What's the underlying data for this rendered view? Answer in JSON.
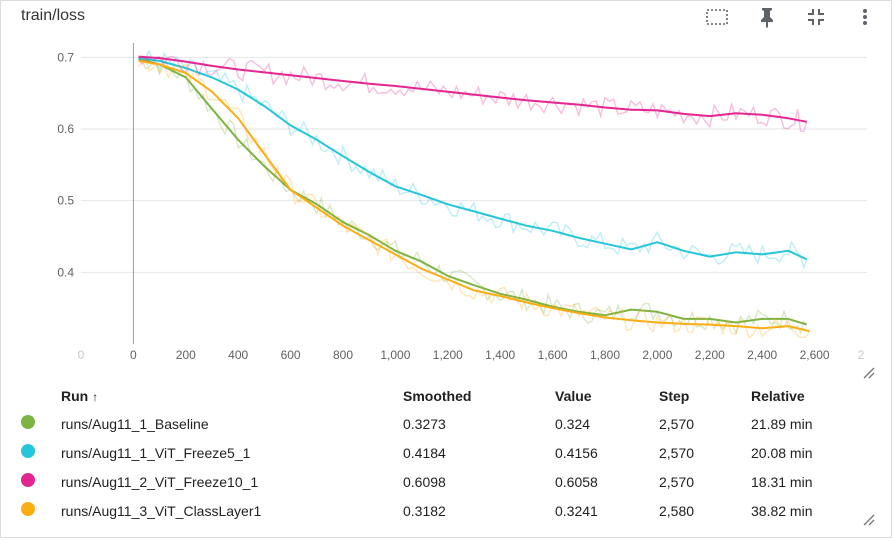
{
  "title": "train/loss",
  "chart_data": {
    "type": "line",
    "title": "train/loss",
    "xlim": [
      -200,
      2800
    ],
    "ylim": [
      0.3,
      0.72
    ],
    "x_ticks": [
      0,
      200,
      400,
      600,
      800,
      1000,
      1200,
      1400,
      1600,
      1800,
      2000,
      2200,
      2400,
      2600
    ],
    "x_tick_labels": [
      "0",
      "200",
      "400",
      "600",
      "800",
      "1,000",
      "1,200",
      "1,400",
      "1,600",
      "1,800",
      "2,000",
      "2,200",
      "2,400",
      "2,600"
    ],
    "y_ticks": [
      0.4,
      0.5,
      0.6,
      0.7
    ],
    "y_tick_labels": [
      "0.4",
      "0.5",
      "0.6",
      "0.7"
    ],
    "grid": true,
    "legend": "table-below",
    "series": [
      {
        "name": "runs/Aug11_1_Baseline",
        "color": "#7cb342",
        "x": [
          20,
          100,
          200,
          300,
          400,
          500,
          600,
          700,
          800,
          900,
          1000,
          1100,
          1200,
          1300,
          1400,
          1500,
          1600,
          1700,
          1800,
          1900,
          2000,
          2100,
          2200,
          2300,
          2400,
          2500,
          2570
        ],
        "y": [
          0.698,
          0.69,
          0.672,
          0.628,
          0.585,
          0.548,
          0.515,
          0.495,
          0.47,
          0.452,
          0.43,
          0.415,
          0.395,
          0.382,
          0.37,
          0.362,
          0.352,
          0.345,
          0.34,
          0.348,
          0.345,
          0.335,
          0.335,
          0.33,
          0.335,
          0.335,
          0.327
        ]
      },
      {
        "name": "runs/Aug11_1_ViT_Freeze5_1",
        "color": "#26c6da",
        "x": [
          20,
          100,
          200,
          300,
          400,
          500,
          600,
          700,
          800,
          900,
          1000,
          1100,
          1200,
          1300,
          1400,
          1500,
          1600,
          1700,
          1800,
          1900,
          2000,
          2100,
          2200,
          2300,
          2400,
          2500,
          2570
        ],
        "y": [
          0.699,
          0.695,
          0.685,
          0.672,
          0.655,
          0.632,
          0.605,
          0.585,
          0.562,
          0.54,
          0.52,
          0.508,
          0.495,
          0.485,
          0.475,
          0.465,
          0.458,
          0.448,
          0.44,
          0.432,
          0.442,
          0.43,
          0.422,
          0.428,
          0.425,
          0.43,
          0.418
        ]
      },
      {
        "name": "runs/Aug11_2_ViT_Freeze10_1",
        "color": "#e52592",
        "x": [
          20,
          100,
          200,
          300,
          400,
          500,
          600,
          700,
          800,
          900,
          1000,
          1100,
          1200,
          1300,
          1400,
          1500,
          1600,
          1700,
          1800,
          1900,
          2000,
          2100,
          2200,
          2300,
          2400,
          2500,
          2570
        ],
        "y": [
          0.701,
          0.699,
          0.694,
          0.688,
          0.683,
          0.679,
          0.675,
          0.671,
          0.667,
          0.663,
          0.66,
          0.656,
          0.652,
          0.648,
          0.644,
          0.64,
          0.637,
          0.634,
          0.63,
          0.627,
          0.626,
          0.621,
          0.618,
          0.622,
          0.62,
          0.615,
          0.61
        ]
      },
      {
        "name": "runs/Aug11_3_ViT_ClassLayer1",
        "color": "#fbad14",
        "x": [
          20,
          100,
          200,
          300,
          400,
          500,
          600,
          700,
          800,
          900,
          1000,
          1100,
          1200,
          1300,
          1400,
          1500,
          1600,
          1700,
          1800,
          1900,
          2000,
          2100,
          2200,
          2300,
          2400,
          2500,
          2580
        ],
        "y": [
          0.695,
          0.69,
          0.678,
          0.652,
          0.615,
          0.565,
          0.515,
          0.49,
          0.465,
          0.445,
          0.425,
          0.405,
          0.39,
          0.375,
          0.367,
          0.358,
          0.35,
          0.343,
          0.337,
          0.333,
          0.33,
          0.328,
          0.327,
          0.325,
          0.322,
          0.325,
          0.318
        ]
      }
    ]
  },
  "table": {
    "headers": {
      "run": "Run",
      "sort_arrow": "↑",
      "smoothed": "Smoothed",
      "value": "Value",
      "step": "Step",
      "relative": "Relative"
    },
    "rows": [
      {
        "run": "runs/Aug11_1_Baseline",
        "smoothed": "0.3273",
        "value": "0.324",
        "step": "2,570",
        "relative": "21.89 min"
      },
      {
        "run": "runs/Aug11_1_ViT_Freeze5_1",
        "smoothed": "0.4184",
        "value": "0.4156",
        "step": "2,570",
        "relative": "20.08 min"
      },
      {
        "run": "runs/Aug11_2_ViT_Freeze10_1",
        "smoothed": "0.6098",
        "value": "0.6058",
        "step": "2,570",
        "relative": "18.31 min"
      },
      {
        "run": "runs/Aug11_3_ViT_ClassLayer1",
        "smoothed": "0.3182",
        "value": "0.3241",
        "step": "2,580",
        "relative": "38.82 min"
      }
    ]
  },
  "icons": {
    "fit": "fit-domain-icon",
    "pin": "pin-icon",
    "collapse": "collapse-icon",
    "menu": "more-vert-icon",
    "resize": "resize-handle-icon"
  }
}
